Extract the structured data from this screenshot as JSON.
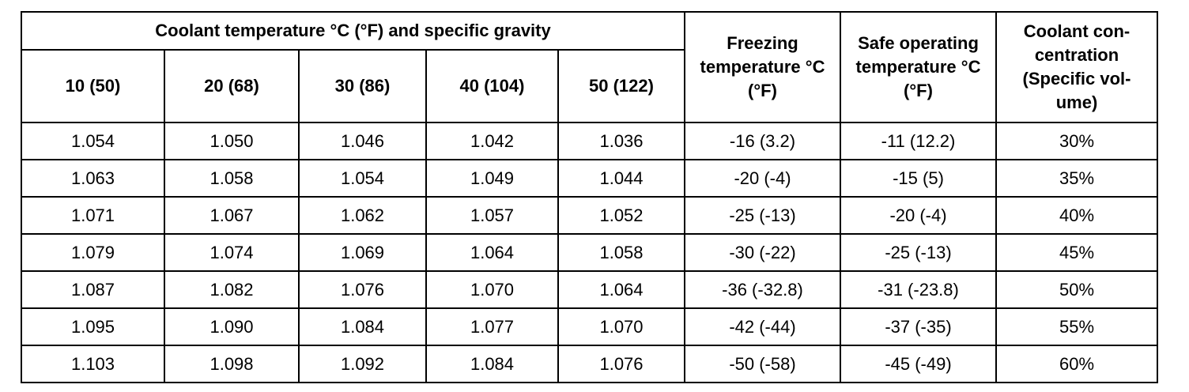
{
  "table": {
    "group_header": "Coolant temperature °C (°F) and specific gravity",
    "freezing_header": "Freezing temperature °C (°F)",
    "safe_header": "Safe operating temperature °C (°F)",
    "concentration_header": "Coolant con- centration (Specific vol- ume)",
    "temp_columns": [
      "10 (50)",
      "20 (68)",
      "30 (86)",
      "40 (104)",
      "50 (122)"
    ],
    "rows": [
      {
        "sg": [
          "1.054",
          "1.050",
          "1.046",
          "1.042",
          "1.036"
        ],
        "freezing": "-16 (3.2)",
        "safe": "-11 (12.2)",
        "concentration": "30%"
      },
      {
        "sg": [
          "1.063",
          "1.058",
          "1.054",
          "1.049",
          "1.044"
        ],
        "freezing": "-20 (-4)",
        "safe": "-15 (5)",
        "concentration": "35%"
      },
      {
        "sg": [
          "1.071",
          "1.067",
          "1.062",
          "1.057",
          "1.052"
        ],
        "freezing": "-25 (-13)",
        "safe": "-20 (-4)",
        "concentration": "40%"
      },
      {
        "sg": [
          "1.079",
          "1.074",
          "1.069",
          "1.064",
          "1.058"
        ],
        "freezing": "-30 (-22)",
        "safe": "-25 (-13)",
        "concentration": "45%"
      },
      {
        "sg": [
          "1.087",
          "1.082",
          "1.076",
          "1.070",
          "1.064"
        ],
        "freezing": "-36 (-32.8)",
        "safe": "-31 (-23.8)",
        "concentration": "50%"
      },
      {
        "sg": [
          "1.095",
          "1.090",
          "1.084",
          "1.077",
          "1.070"
        ],
        "freezing": "-42 (-44)",
        "safe": "-37 (-35)",
        "concentration": "55%"
      },
      {
        "sg": [
          "1.103",
          "1.098",
          "1.092",
          "1.084",
          "1.076"
        ],
        "freezing": "-50 (-58)",
        "safe": "-45 (-49)",
        "concentration": "60%"
      }
    ]
  }
}
